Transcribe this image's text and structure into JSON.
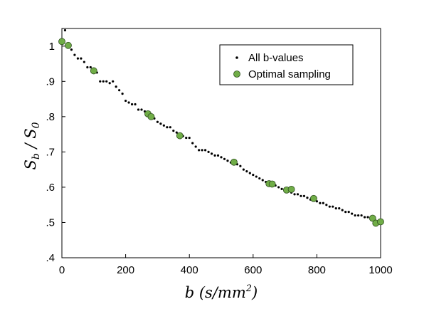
{
  "chart_data": {
    "type": "scatter",
    "title": "",
    "xlabel": "b (s/mm²)",
    "ylabel": "S_b / S_0",
    "xlim": [
      0,
      1000
    ],
    "ylim": [
      0.4,
      1.05
    ],
    "x_ticks": [
      0,
      200,
      400,
      600,
      800,
      1000
    ],
    "x_tick_labels": [
      "0",
      "200",
      "400",
      "600",
      "800",
      "1000"
    ],
    "y_ticks": [
      0.4,
      0.5,
      0.6,
      0.7,
      0.8,
      0.9,
      1.0
    ],
    "y_tick_labels": [
      ".4",
      ".5",
      ".6",
      ".7",
      ".8",
      ".9",
      "1"
    ],
    "grid": false,
    "legend_position": "top-right",
    "series": [
      {
        "name": "All b-values",
        "marker": "small-dot",
        "color": "#000000",
        "x": [
          0,
          10,
          20,
          30,
          40,
          50,
          60,
          70,
          80,
          90,
          100,
          110,
          120,
          130,
          140,
          150,
          160,
          170,
          180,
          190,
          200,
          210,
          220,
          230,
          240,
          250,
          260,
          270,
          280,
          290,
          300,
          310,
          320,
          330,
          340,
          350,
          360,
          370,
          380,
          390,
          400,
          410,
          420,
          430,
          440,
          450,
          460,
          470,
          480,
          490,
          500,
          510,
          520,
          530,
          540,
          550,
          560,
          570,
          580,
          590,
          600,
          610,
          620,
          630,
          640,
          650,
          660,
          670,
          680,
          690,
          700,
          710,
          720,
          730,
          740,
          750,
          760,
          770,
          780,
          790,
          800,
          810,
          820,
          830,
          840,
          850,
          860,
          870,
          880,
          890,
          900,
          910,
          920,
          930,
          940,
          950,
          960,
          970,
          980,
          990,
          1000
        ],
        "y": [
          1.01,
          1.045,
          1.0,
          0.99,
          0.975,
          0.965,
          0.965,
          0.955,
          0.94,
          0.94,
          0.93,
          0.925,
          0.9,
          0.9,
          0.9,
          0.895,
          0.9,
          0.885,
          0.875,
          0.865,
          0.845,
          0.84,
          0.835,
          0.835,
          0.82,
          0.82,
          0.815,
          0.805,
          0.8,
          0.795,
          0.785,
          0.78,
          0.775,
          0.77,
          0.77,
          0.76,
          0.755,
          0.745,
          0.745,
          0.74,
          0.74,
          0.725,
          0.715,
          0.705,
          0.705,
          0.705,
          0.7,
          0.695,
          0.69,
          0.69,
          0.685,
          0.68,
          0.675,
          0.67,
          0.67,
          0.665,
          0.66,
          0.65,
          0.645,
          0.64,
          0.635,
          0.63,
          0.625,
          0.62,
          0.615,
          0.61,
          0.605,
          0.605,
          0.6,
          0.595,
          0.59,
          0.59,
          0.585,
          0.58,
          0.58,
          0.575,
          0.575,
          0.57,
          0.565,
          0.565,
          0.56,
          0.555,
          0.555,
          0.55,
          0.545,
          0.545,
          0.54,
          0.54,
          0.535,
          0.53,
          0.53,
          0.525,
          0.52,
          0.52,
          0.52,
          0.515,
          0.515,
          0.51,
          0.505,
          0.5,
          0.5
        ]
      },
      {
        "name": "Optimal sampling",
        "marker": "circle",
        "color": "#70ad47",
        "edgecolor": "#2f4f1f",
        "x": [
          0,
          20,
          100,
          270,
          280,
          370,
          540,
          650,
          660,
          705,
          720,
          790,
          975,
          985,
          1000
        ],
        "y": [
          1.013,
          1.002,
          0.93,
          0.808,
          0.8,
          0.746,
          0.671,
          0.61,
          0.609,
          0.592,
          0.594,
          0.568,
          0.512,
          0.498,
          0.502
        ]
      }
    ]
  }
}
